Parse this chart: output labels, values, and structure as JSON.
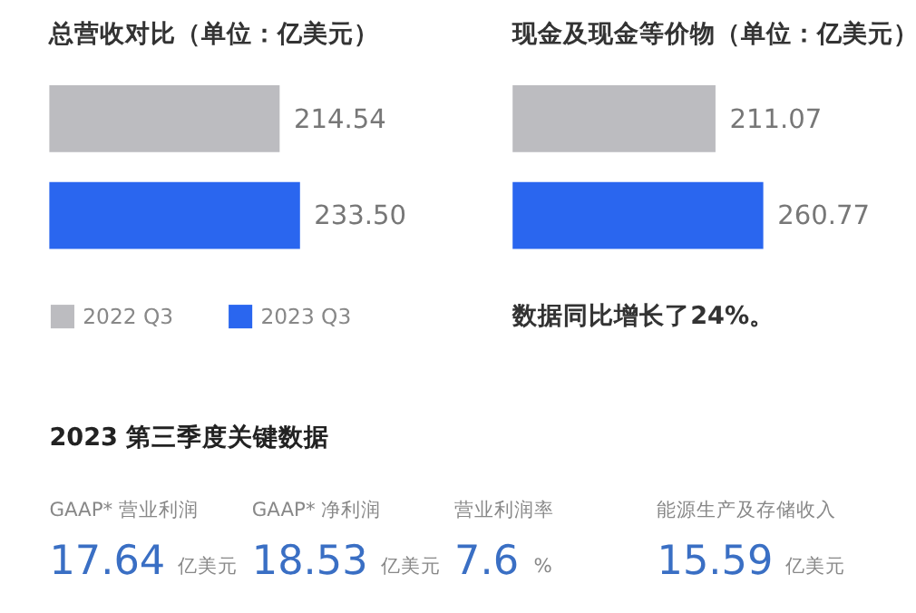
{
  "chart_data": [
    {
      "type": "bar",
      "orientation": "horizontal",
      "title": "总营收对比（单位：亿美元）",
      "categories": [
        null
      ],
      "legend": "bottom",
      "tick_labels": false,
      "series": [
        {
          "name": "2022 Q3",
          "color": "#bcbcc0",
          "values": [
            214.54
          ],
          "value_labels": [
            "214.54"
          ]
        },
        {
          "name": "2023 Q3",
          "color": "#2a66ef",
          "values": [
            233.5
          ],
          "value_labels": [
            "233.50"
          ]
        }
      ]
    },
    {
      "type": "bar",
      "orientation": "horizontal",
      "title": "现金及现金等价物（单位：亿美元）",
      "categories": [
        null
      ],
      "tick_labels": false,
      "annotations": [
        "数据同比增长了24%。"
      ],
      "series": [
        {
          "color": "#bcbcc0",
          "values": [
            211.07
          ],
          "value_labels": [
            "211.07"
          ]
        },
        {
          "color": "#2a66ef",
          "values": [
            260.77
          ],
          "value_labels": [
            "260.77"
          ]
        }
      ]
    },
    {
      "type": "other",
      "title": "2023 第三季度关键数据",
      "color": "#3a6fc4",
      "categories": [
        "GAAP* 营业利润",
        "GAAP* 净利润",
        "营业利润率",
        "能源生产及存储收入"
      ],
      "values": [
        17.64,
        18.53,
        7.6,
        15.59
      ],
      "data_labels": true,
      "annotations": [
        {
          "text": "亿美元",
          "x": "GAAP* 营业利润"
        },
        {
          "text": "亿美元",
          "x": "GAAP* 净利润"
        },
        {
          "text": "%",
          "x": "营业利润率"
        },
        {
          "text": "亿美元",
          "x": "能源生产及存储收入"
        }
      ]
    }
  ]
}
